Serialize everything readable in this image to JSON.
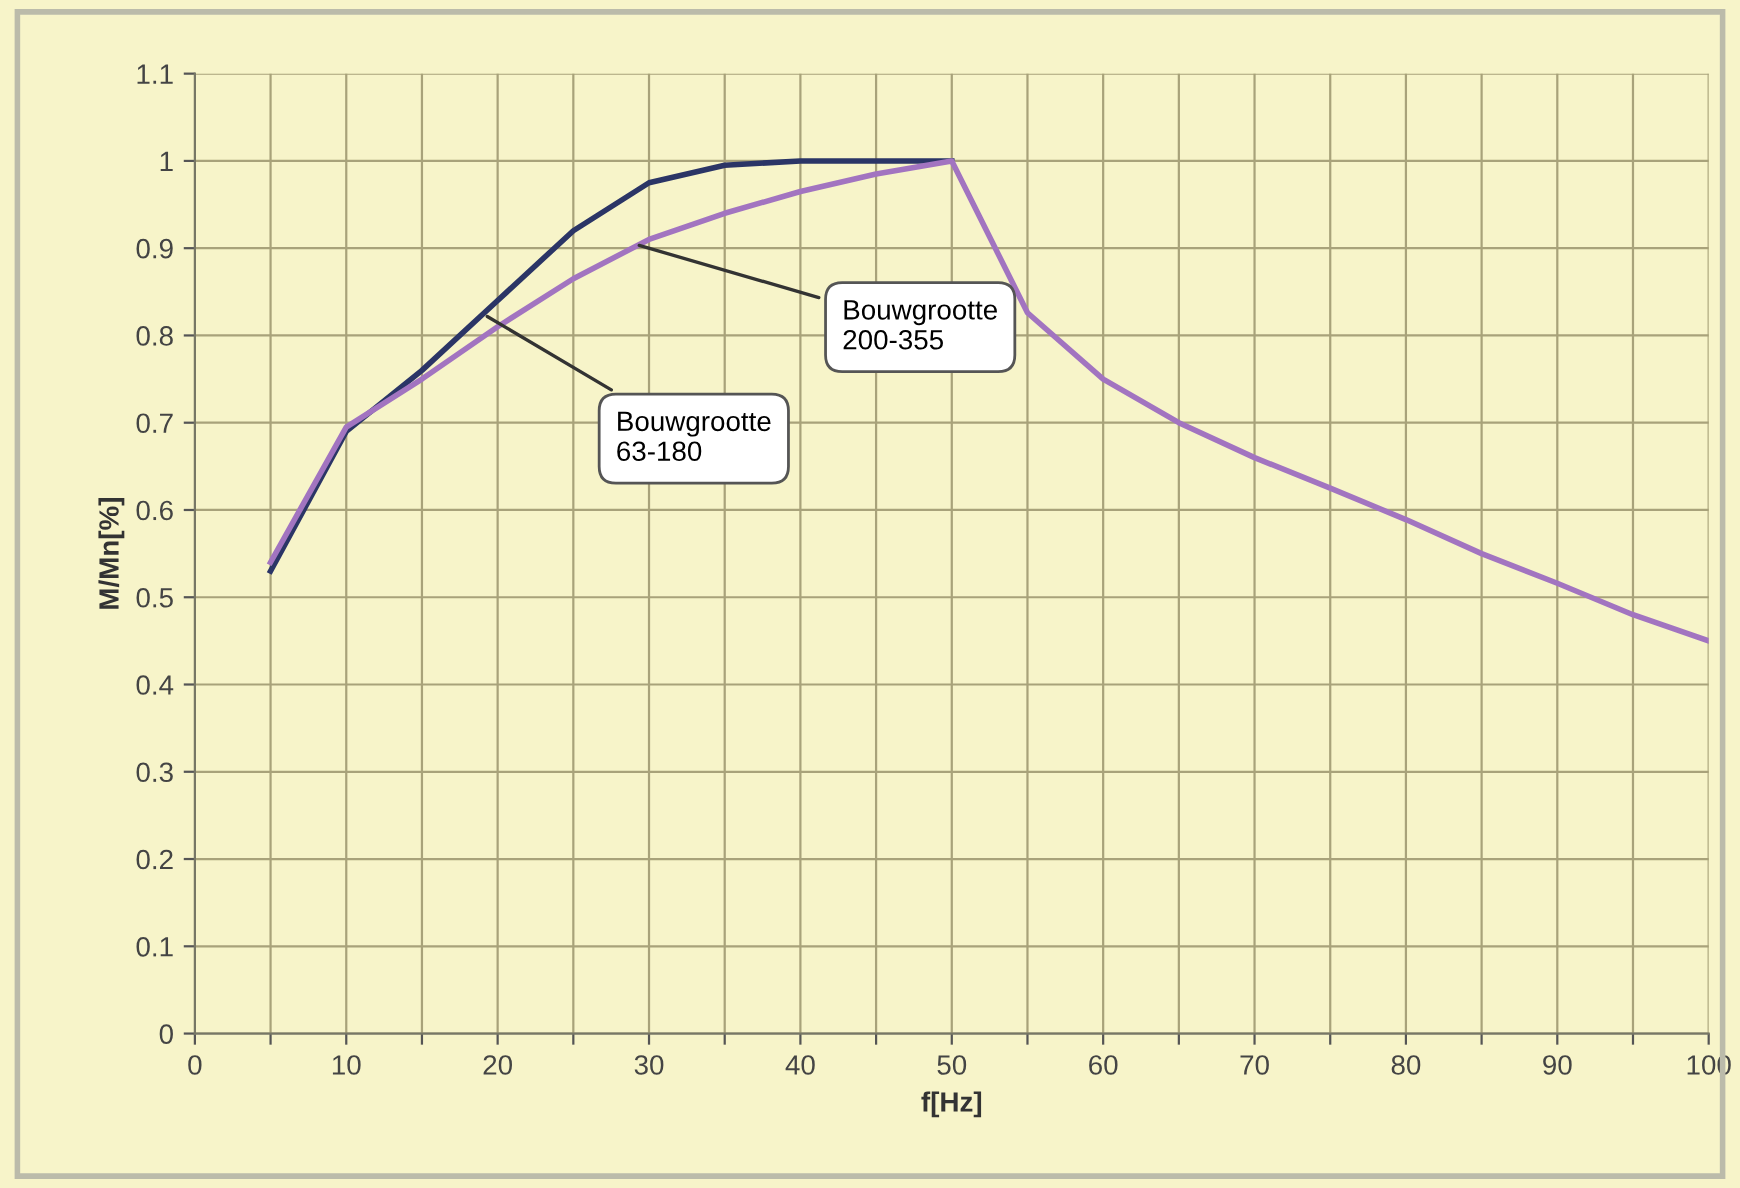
{
  "chart_data": {
    "type": "line",
    "xlabel": "f[Hz]",
    "ylabel": "M/Mn[%]",
    "series": [
      {
        "color": "#2b3566",
        "x": [
          5,
          10,
          15,
          20,
          25,
          30,
          35,
          40,
          45,
          50
        ],
        "values": [
          0.53,
          0.69,
          0.76,
          0.84,
          0.92,
          0.975,
          0.995,
          1.0,
          1.0,
          1.0
        ]
      },
      {
        "color": "#a274c0",
        "x": [
          5,
          10,
          15,
          20,
          25,
          30,
          35,
          40,
          45,
          50,
          55,
          60,
          65,
          70,
          75,
          80,
          85,
          90,
          95,
          100
        ],
        "values": [
          0.54,
          0.695,
          0.75,
          0.81,
          0.865,
          0.91,
          0.94,
          0.965,
          0.985,
          1.0,
          0.826,
          0.75,
          0.7,
          0.66,
          0.625,
          0.589,
          0.55,
          0.516,
          0.48,
          0.45
        ]
      }
    ],
    "annotations": [
      {
        "text": "Bouwgrootte\n63-180",
        "x": 19,
        "y": 0.825
      },
      {
        "text": "Bouwgrootte\n200-355",
        "x": 29,
        "y": 0.905
      }
    ],
    "xlim": [
      0,
      100
    ],
    "ylim": [
      0,
      1.1
    ],
    "xticks": [
      0,
      {
        "value": 5,
        "label": null
      },
      10,
      {
        "value": 15,
        "label": null
      },
      20,
      {
        "value": 25,
        "label": null
      },
      30,
      {
        "value": 35,
        "label": null
      },
      40,
      {
        "value": 45,
        "label": null
      },
      50,
      {
        "value": 55,
        "label": null
      },
      60,
      {
        "value": 65,
        "label": null
      },
      70,
      {
        "value": 75,
        "label": null
      },
      80,
      {
        "value": 85,
        "label": null
      },
      90,
      {
        "value": 95,
        "label": null
      },
      100
    ],
    "yticks": [
      0,
      0.1,
      0.2,
      0.3,
      0.4,
      0.5,
      0.6,
      0.7,
      0.8,
      0.9,
      1,
      1.1
    ],
    "grid": true,
    "marker": "none",
    "line_style": "solid",
    "legend": false
  }
}
